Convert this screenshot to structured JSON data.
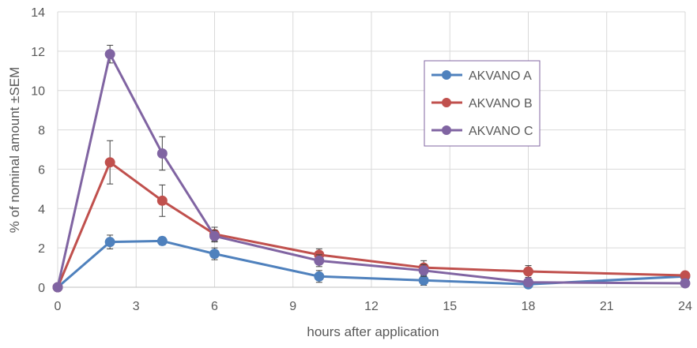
{
  "chart_data": {
    "type": "line",
    "title": "",
    "xlabel": "hours after application",
    "ylabel": "% of nominal amount ±SEM",
    "xlim": [
      0,
      24
    ],
    "ylim": [
      0,
      14
    ],
    "x_ticks": [
      0,
      3,
      6,
      9,
      12,
      15,
      18,
      21,
      24
    ],
    "y_ticks": [
      0,
      2,
      4,
      6,
      8,
      10,
      12,
      14
    ],
    "x_tick_labels": [
      "0",
      "3",
      "6",
      "9",
      "12",
      "15",
      "18",
      "21",
      "24"
    ],
    "y_tick_labels": [
      "0",
      "2",
      "4",
      "6",
      "8",
      "10",
      "12",
      "14"
    ],
    "grid": true,
    "legend": "upper-center-right",
    "error_bars": true,
    "series": [
      {
        "name": "AKVANO A",
        "color": "#4f81bd",
        "x": [
          0,
          2,
          4,
          6,
          10,
          14,
          18,
          24
        ],
        "values": [
          0,
          2.3,
          2.35,
          1.7,
          0.55,
          0.35,
          0.15,
          0.55
        ],
        "errors": [
          0,
          0.35,
          0.2,
          0.3,
          0.3,
          0.25,
          0.1,
          0.1
        ]
      },
      {
        "name": "AKVANO B",
        "color": "#c0504d",
        "x": [
          0,
          2,
          4,
          6,
          10,
          14,
          18,
          24
        ],
        "values": [
          0,
          6.35,
          4.4,
          2.7,
          1.65,
          1.0,
          0.8,
          0.6
        ],
        "errors": [
          0,
          1.1,
          0.8,
          0.35,
          0.3,
          0.35,
          0.3,
          0.1
        ]
      },
      {
        "name": "AKVANO C",
        "color": "#8064a2",
        "x": [
          0,
          2,
          4,
          6,
          10,
          14,
          18,
          24
        ],
        "values": [
          0,
          11.85,
          6.8,
          2.6,
          1.35,
          0.85,
          0.25,
          0.2
        ],
        "errors": [
          0,
          0.45,
          0.85,
          0.3,
          0.3,
          0.3,
          0.15,
          0.1
        ]
      }
    ]
  }
}
